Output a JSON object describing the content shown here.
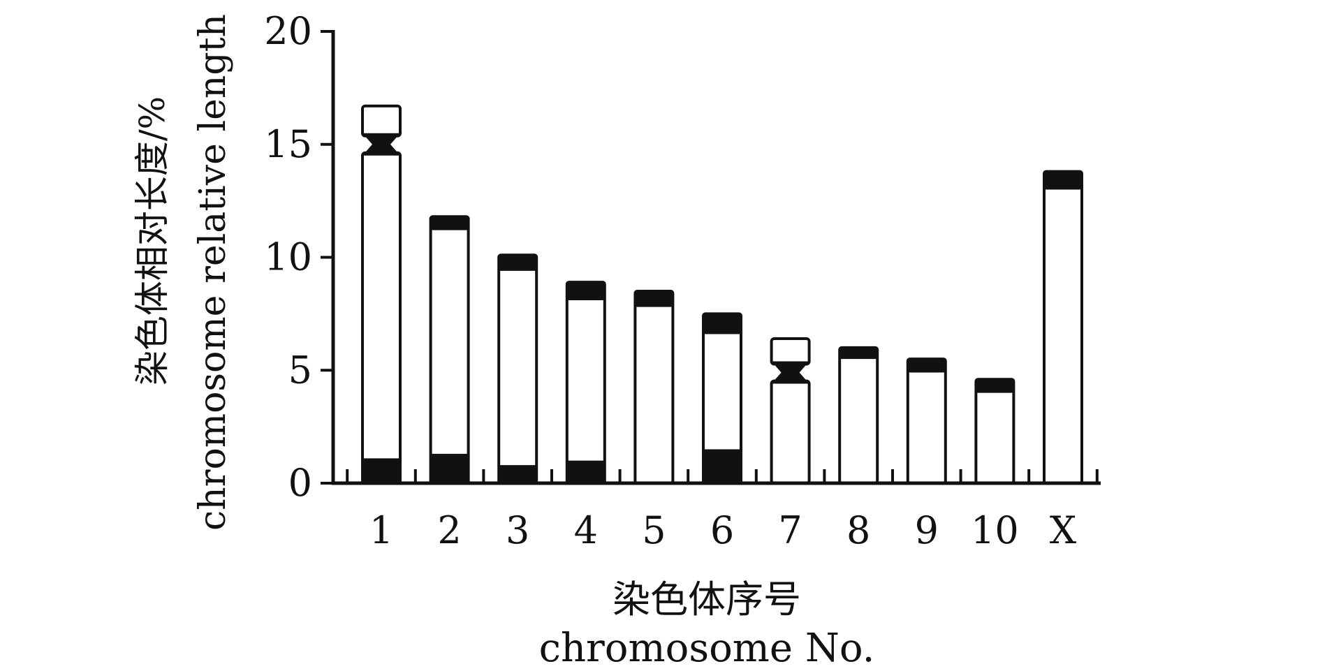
{
  "chart_data": {
    "type": "bar",
    "categories": [
      "1",
      "2",
      "3",
      "4",
      "5",
      "6",
      "7",
      "8",
      "9",
      "10",
      "X"
    ],
    "total_length": [
      16.7,
      11.8,
      10.1,
      8.9,
      8.5,
      7.5,
      6.4,
      6.0,
      5.5,
      4.6,
      13.8
    ],
    "centromere_position": [
      15.0,
      null,
      null,
      null,
      null,
      null,
      4.9,
      null,
      null,
      null,
      null
    ],
    "top_dark_band": [
      null,
      [
        11.2,
        11.8
      ],
      [
        9.4,
        10.1
      ],
      [
        8.1,
        8.9
      ],
      [
        7.8,
        8.5
      ],
      [
        6.6,
        7.5
      ],
      null,
      [
        5.5,
        6.0
      ],
      [
        4.9,
        5.5
      ],
      [
        4.0,
        4.6
      ],
      [
        13.0,
        13.8
      ]
    ],
    "bottom_dark_band": [
      [
        0,
        1.1
      ],
      [
        0,
        1.3
      ],
      [
        0,
        0.8
      ],
      [
        0,
        1.0
      ],
      null,
      [
        0,
        1.5
      ],
      null,
      null,
      null,
      null,
      null
    ],
    "ylim": [
      0,
      20
    ],
    "yticks": [
      0,
      5,
      10,
      15,
      20
    ],
    "ylabel_cn": "染色体相对长度/%",
    "ylabel_en": "chromosome relative length",
    "xlabel_cn": "染色体序号",
    "xlabel_en": "chromosome No."
  }
}
